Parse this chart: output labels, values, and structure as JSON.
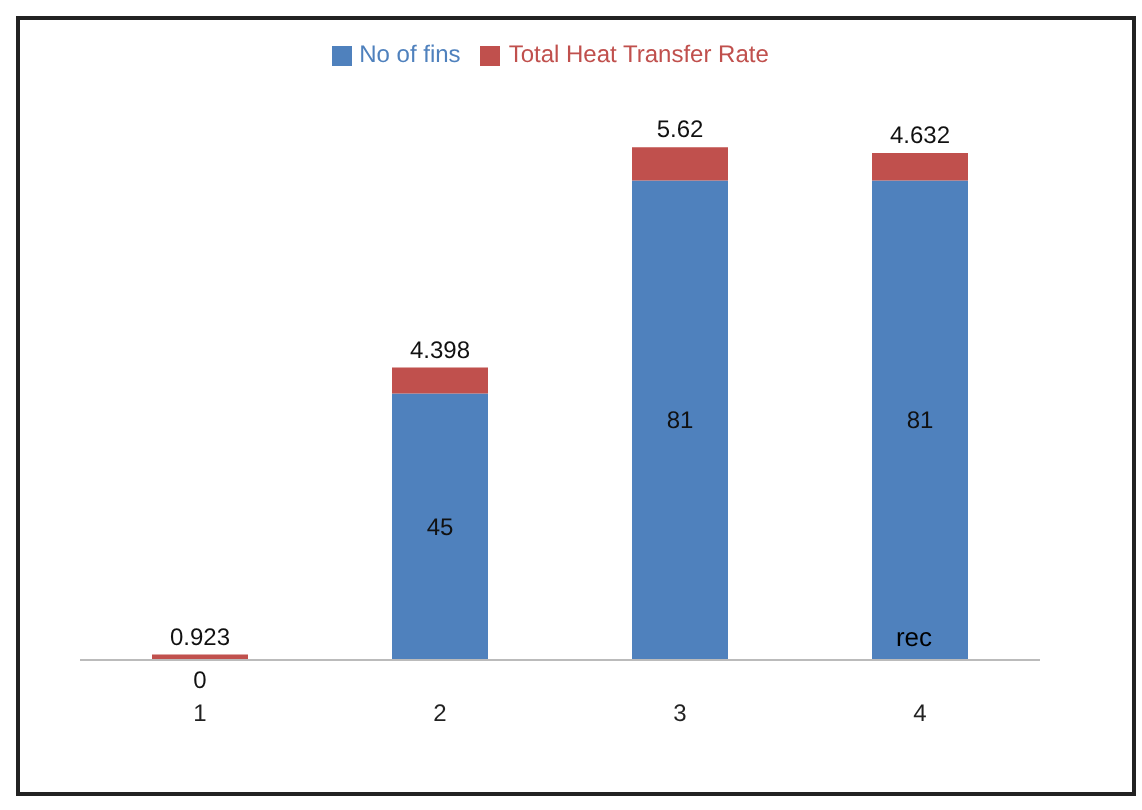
{
  "chart_data": {
    "type": "bar",
    "stacked": true,
    "categories": [
      "1",
      "2",
      "3",
      "4"
    ],
    "series": [
      {
        "name": "No of fins",
        "color": "#4f81bd",
        "values": [
          0,
          45,
          81,
          81
        ]
      },
      {
        "name": "Total Heat Transfer Rate",
        "color": "#c0504d",
        "values": [
          0.923,
          4.398,
          5.62,
          4.632
        ]
      }
    ],
    "tick_labels": "x",
    "data_labels": true,
    "legend": "top",
    "grid": false,
    "annotations": [
      "rec"
    ]
  }
}
